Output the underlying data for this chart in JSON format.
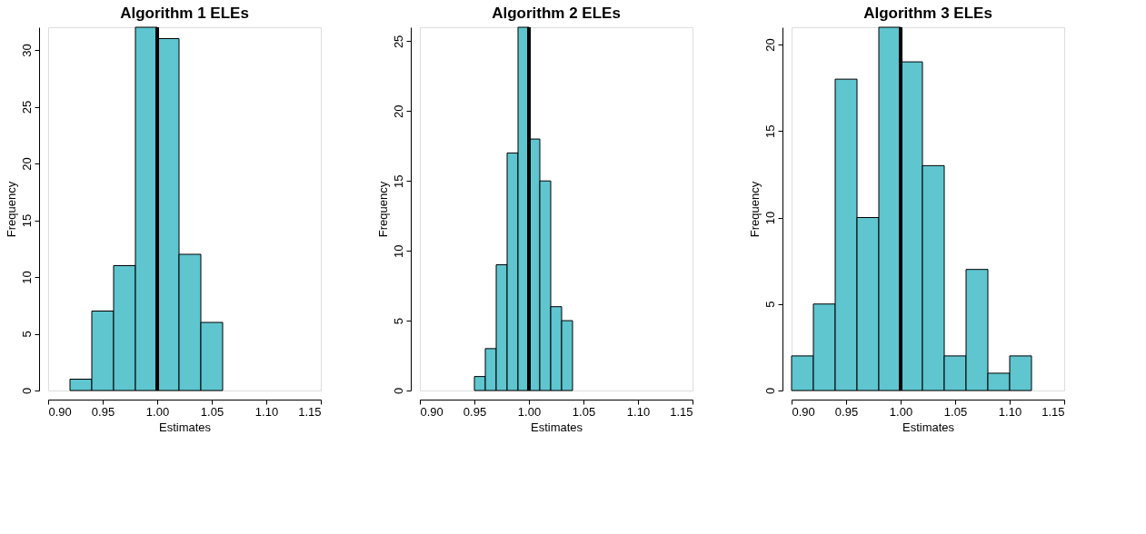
{
  "chart_data": [
    {
      "type": "histogram",
      "title": "Algorithm 1 ELEs",
      "xlabel": "Estimates",
      "ylabel": "Frequency",
      "color": "#5fc5cf",
      "bins": [
        0.92,
        0.94,
        0.96,
        0.98,
        1.0,
        1.02,
        1.04,
        1.06
      ],
      "values": [
        1,
        7,
        11,
        32,
        31,
        12,
        6
      ],
      "xlim": [
        0.9,
        1.15
      ],
      "xticks": [
        {
          "value": 0.9,
          "label": "0.90"
        },
        0.95,
        {
          "value": 1.0,
          "label": "1.00"
        },
        1.05,
        {
          "value": 1.1,
          "label": "1.10"
        },
        1.15
      ],
      "ylim": [
        0,
        32
      ],
      "yticks": [
        0,
        5,
        10,
        15,
        20,
        25,
        30
      ],
      "grid": false,
      "ref_lines": [
        {
          "axis": "x",
          "value": 1.0,
          "color": "#000000"
        }
      ]
    },
    {
      "type": "histogram",
      "title": "Algorithm 2 ELEs",
      "xlabel": "Estimates",
      "ylabel": "Frequency",
      "color": "#5fc5cf",
      "bins": [
        0.95,
        0.96,
        0.97,
        0.98,
        0.99,
        1.0,
        1.01,
        1.02,
        1.03,
        1.04
      ],
      "values": [
        1,
        3,
        9,
        17,
        26,
        18,
        15,
        6,
        5
      ],
      "xlim": [
        0.9,
        1.15
      ],
      "xticks": [
        {
          "value": 0.9,
          "label": "0.90"
        },
        0.95,
        {
          "value": 1.0,
          "label": "1.00"
        },
        1.05,
        {
          "value": 1.1,
          "label": "1.10"
        },
        1.15
      ],
      "ylim": [
        0,
        26
      ],
      "yticks": [
        0,
        5,
        10,
        15,
        20,
        25
      ],
      "grid": false,
      "ref_lines": [
        {
          "axis": "x",
          "value": 1.0,
          "color": "#000000"
        }
      ]
    },
    {
      "type": "histogram",
      "title": "Algorithm 3 ELEs",
      "xlabel": "Estimates",
      "ylabel": "Frequency",
      "color": "#5fc5cf",
      "bins": [
        0.9,
        0.92,
        0.94,
        0.96,
        0.98,
        1.0,
        1.02,
        1.04,
        1.06,
        1.08,
        1.1,
        1.12
      ],
      "values": [
        2,
        5,
        18,
        10,
        21,
        19,
        13,
        2,
        7,
        1,
        2
      ],
      "xlim": [
        0.9,
        1.15
      ],
      "xticks": [
        {
          "value": 0.9,
          "label": "0.90"
        },
        0.95,
        {
          "value": 1.0,
          "label": "1.00"
        },
        1.05,
        {
          "value": 1.1,
          "label": "1.10"
        },
        1.15
      ],
      "ylim": [
        0,
        21
      ],
      "yticks": [
        0,
        5,
        10,
        15,
        20
      ],
      "grid": false,
      "ref_lines": [
        {
          "axis": "x",
          "value": 1.0,
          "color": "#000000"
        }
      ]
    }
  ]
}
